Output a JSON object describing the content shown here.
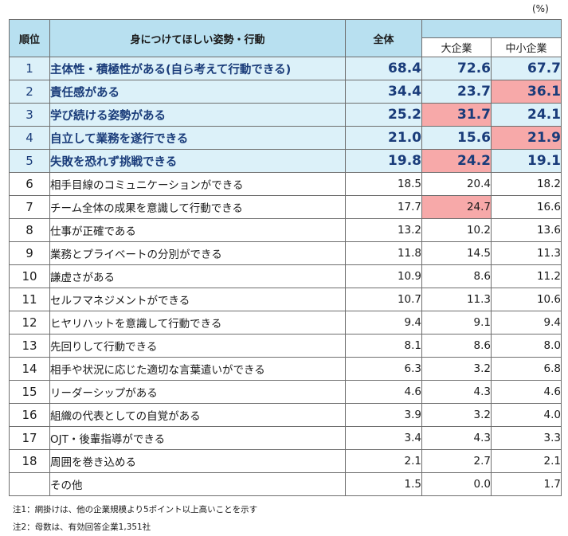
{
  "unit": "(%)",
  "headers": {
    "rank": "順位",
    "item": "身につけてほしい姿勢・行動",
    "all": "全体",
    "large": "大企業",
    "sme": "中小企業"
  },
  "rows": [
    {
      "rank": "1",
      "item": "主体性・積極性がある(自ら考えて行動できる)",
      "all": "68.4",
      "large": "72.6",
      "sme": "67.7",
      "top": true,
      "hl_large": false,
      "hl_sme": false
    },
    {
      "rank": "2",
      "item": "責任感がある",
      "all": "34.4",
      "large": "23.7",
      "sme": "36.1",
      "top": true,
      "hl_large": false,
      "hl_sme": true
    },
    {
      "rank": "3",
      "item": "学び続ける姿勢がある",
      "all": "25.2",
      "large": "31.7",
      "sme": "24.1",
      "top": true,
      "hl_large": true,
      "hl_sme": false
    },
    {
      "rank": "4",
      "item": "自立して業務を遂行できる",
      "all": "21.0",
      "large": "15.6",
      "sme": "21.9",
      "top": true,
      "hl_large": false,
      "hl_sme": true
    },
    {
      "rank": "5",
      "item": "失敗を恐れず挑戦できる",
      "all": "19.8",
      "large": "24.2",
      "sme": "19.1",
      "top": true,
      "hl_large": true,
      "hl_sme": false
    },
    {
      "rank": "6",
      "item": "相手目線のコミュニケーションができる",
      "all": "18.5",
      "large": "20.4",
      "sme": "18.2",
      "top": false,
      "hl_large": false,
      "hl_sme": false
    },
    {
      "rank": "7",
      "item": "チーム全体の成果を意識して行動できる",
      "all": "17.7",
      "large": "24.7",
      "sme": "16.6",
      "top": false,
      "hl_large": true,
      "hl_sme": false
    },
    {
      "rank": "8",
      "item": "仕事が正確である",
      "all": "13.2",
      "large": "10.2",
      "sme": "13.6",
      "top": false,
      "hl_large": false,
      "hl_sme": false
    },
    {
      "rank": "9",
      "item": "業務とプライベートの分別ができる",
      "all": "11.8",
      "large": "14.5",
      "sme": "11.3",
      "top": false,
      "hl_large": false,
      "hl_sme": false
    },
    {
      "rank": "10",
      "item": "謙虚さがある",
      "all": "10.9",
      "large": "8.6",
      "sme": "11.2",
      "top": false,
      "hl_large": false,
      "hl_sme": false
    },
    {
      "rank": "11",
      "item": "セルフマネジメントができる",
      "all": "10.7",
      "large": "11.3",
      "sme": "10.6",
      "top": false,
      "hl_large": false,
      "hl_sme": false
    },
    {
      "rank": "12",
      "item": "ヒヤリハットを意識して行動できる",
      "all": "9.4",
      "large": "9.1",
      "sme": "9.4",
      "top": false,
      "hl_large": false,
      "hl_sme": false
    },
    {
      "rank": "13",
      "item": "先回りして行動できる",
      "all": "8.1",
      "large": "8.6",
      "sme": "8.0",
      "top": false,
      "hl_large": false,
      "hl_sme": false
    },
    {
      "rank": "14",
      "item": "相手や状況に応じた適切な言葉遣いができる",
      "all": "6.3",
      "large": "3.2",
      "sme": "6.8",
      "top": false,
      "hl_large": false,
      "hl_sme": false
    },
    {
      "rank": "15",
      "item": "リーダーシップがある",
      "all": "4.6",
      "large": "4.3",
      "sme": "4.6",
      "top": false,
      "hl_large": false,
      "hl_sme": false
    },
    {
      "rank": "16",
      "item": "組織の代表としての自覚がある",
      "all": "3.9",
      "large": "3.2",
      "sme": "4.0",
      "top": false,
      "hl_large": false,
      "hl_sme": false
    },
    {
      "rank": "17",
      "item": "OJT・後輩指導ができる",
      "all": "3.4",
      "large": "4.3",
      "sme": "3.3",
      "top": false,
      "hl_large": false,
      "hl_sme": false
    },
    {
      "rank": "18",
      "item": "周囲を巻き込める",
      "all": "2.1",
      "large": "2.7",
      "sme": "2.1",
      "top": false,
      "hl_large": false,
      "hl_sme": false
    },
    {
      "rank": "",
      "item": "その他",
      "all": "1.5",
      "large": "0.0",
      "sme": "1.7",
      "top": false,
      "hl_large": false,
      "hl_sme": false
    }
  ],
  "notes": [
    "注1：網掛けは、他の企業規模より5ポイント以上高いことを示す",
    "注2：母数は、有効回答企業1,351社"
  ]
}
